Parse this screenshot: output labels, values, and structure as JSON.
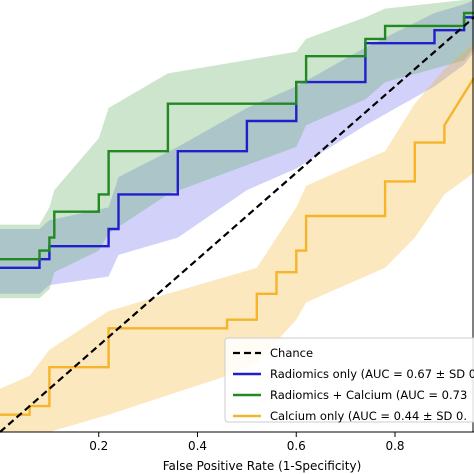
{
  "chart_data": {
    "type": "line",
    "xlabel": "False Positive Rate (1-Specificity)",
    "ylabel": "",
    "xlim": [
      0.0,
      0.96
    ],
    "ylim": [
      0.0,
      1.0
    ],
    "x_ticks": [
      0.2,
      0.4,
      0.6,
      0.8
    ],
    "x_tick_labels": [
      "0.2",
      "0.4",
      "0.6",
      "0.8"
    ],
    "grid": false,
    "legend_position": "bottom-right",
    "series": [
      {
        "name": "Chance",
        "color": "#000000",
        "style": "dashed",
        "x": [
          0.0,
          0.96
        ],
        "y": [
          0.0,
          0.96
        ]
      },
      {
        "name": "Radiomics only (AUC = 0.67 ± SD 0.",
        "color": "#1f1fcc",
        "style": "solid",
        "x": [
          0.0,
          0.08,
          0.08,
          0.1,
          0.1,
          0.22,
          0.22,
          0.24,
          0.24,
          0.36,
          0.36,
          0.5,
          0.5,
          0.6,
          0.6,
          0.74,
          0.74,
          0.88,
          0.88,
          0.94,
          0.94,
          0.96
        ],
        "y": [
          0.38,
          0.38,
          0.4,
          0.4,
          0.43,
          0.43,
          0.47,
          0.47,
          0.55,
          0.55,
          0.65,
          0.65,
          0.72,
          0.72,
          0.81,
          0.81,
          0.9,
          0.9,
          0.93,
          0.93,
          0.96,
          0.96
        ]
      },
      {
        "name": "Radiomics + Calcium (AUC = 0.73",
        "color": "#228822",
        "style": "solid",
        "x": [
          0.0,
          0.08,
          0.08,
          0.1,
          0.1,
          0.11,
          0.11,
          0.2,
          0.2,
          0.22,
          0.22,
          0.34,
          0.34,
          0.6,
          0.6,
          0.62,
          0.62,
          0.74,
          0.74,
          0.78,
          0.78,
          0.94,
          0.94,
          0.96
        ],
        "y": [
          0.4,
          0.4,
          0.42,
          0.42,
          0.45,
          0.45,
          0.51,
          0.51,
          0.55,
          0.55,
          0.65,
          0.65,
          0.76,
          0.76,
          0.81,
          0.81,
          0.87,
          0.87,
          0.91,
          0.91,
          0.94,
          0.94,
          0.97,
          0.97
        ]
      },
      {
        "name": "Calcium only (AUC = 0.44 ± SD 0.",
        "color": "#f5b42a",
        "style": "solid",
        "x": [
          0.0,
          0.06,
          0.06,
          0.1,
          0.1,
          0.22,
          0.22,
          0.46,
          0.46,
          0.52,
          0.52,
          0.56,
          0.56,
          0.6,
          0.6,
          0.62,
          0.62,
          0.78,
          0.78,
          0.84,
          0.84,
          0.9,
          0.9,
          0.96
        ],
        "y": [
          0.04,
          0.04,
          0.06,
          0.06,
          0.15,
          0.15,
          0.24,
          0.24,
          0.26,
          0.26,
          0.32,
          0.32,
          0.37,
          0.37,
          0.42,
          0.42,
          0.5,
          0.5,
          0.58,
          0.58,
          0.67,
          0.67,
          0.71,
          0.82
        ]
      }
    ],
    "bands": [
      {
        "series": "Radiomics only (AUC = 0.67 ± SD 0.",
        "color": "#6666ee",
        "x": [
          0.0,
          0.08,
          0.1,
          0.22,
          0.24,
          0.36,
          0.5,
          0.6,
          0.74,
          0.88,
          0.94,
          0.96
        ],
        "lower": [
          0.32,
          0.32,
          0.34,
          0.36,
          0.41,
          0.45,
          0.56,
          0.61,
          0.71,
          0.8,
          0.85,
          0.88
        ],
        "upper": [
          0.47,
          0.47,
          0.49,
          0.52,
          0.59,
          0.66,
          0.75,
          0.8,
          0.89,
          0.97,
          0.99,
          1.0
        ]
      },
      {
        "series": "Radiomics + Calcium (AUC = 0.73",
        "color": "#55aa55",
        "x": [
          0.0,
          0.08,
          0.1,
          0.11,
          0.2,
          0.22,
          0.34,
          0.6,
          0.62,
          0.74,
          0.78,
          0.94,
          0.96
        ],
        "lower": [
          0.31,
          0.31,
          0.33,
          0.37,
          0.42,
          0.46,
          0.55,
          0.66,
          0.71,
          0.77,
          0.81,
          0.86,
          0.89
        ],
        "upper": [
          0.48,
          0.48,
          0.52,
          0.56,
          0.68,
          0.75,
          0.83,
          0.88,
          0.91,
          0.96,
          0.98,
          1.0,
          1.0
        ]
      },
      {
        "series": "Calcium only (AUC = 0.44 ± SD 0.",
        "color": "#f5b42a",
        "x": [
          0.0,
          0.06,
          0.1,
          0.22,
          0.46,
          0.52,
          0.56,
          0.6,
          0.62,
          0.78,
          0.84,
          0.9,
          0.96
        ],
        "lower": [
          0.0,
          0.0,
          0.0,
          0.04,
          0.13,
          0.16,
          0.21,
          0.26,
          0.3,
          0.38,
          0.45,
          0.55,
          0.6
        ],
        "upper": [
          0.1,
          0.13,
          0.19,
          0.28,
          0.36,
          0.38,
          0.45,
          0.52,
          0.57,
          0.65,
          0.76,
          0.84,
          0.9
        ]
      }
    ]
  }
}
